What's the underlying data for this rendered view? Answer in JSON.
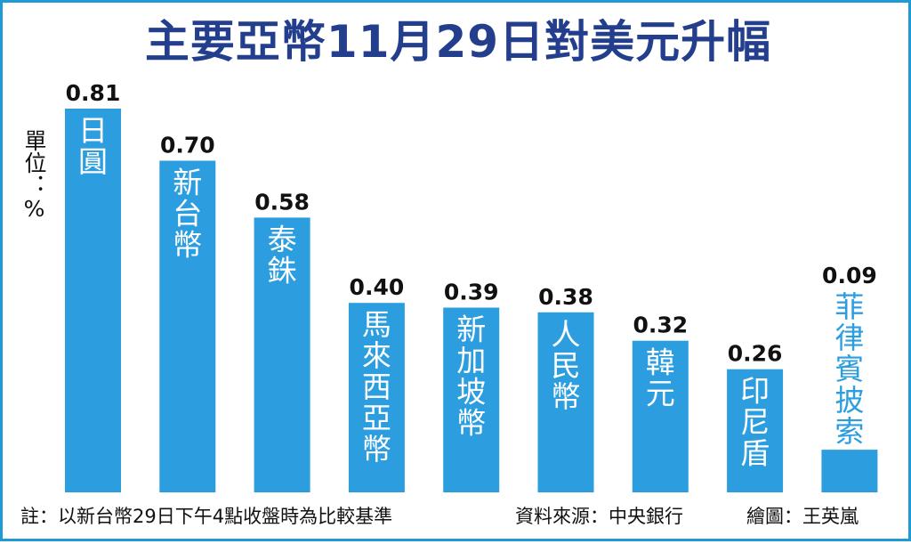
{
  "title": "主要亞幣11月29日對美元升幅",
  "unit_label": "單位：%",
  "footer": {
    "note": "註：以新台幣29日下午4點收盤時為比較基準",
    "source": "資料來源：中央銀行",
    "credit": "繪圖：王英嵐"
  },
  "colors": {
    "bar": "#2c9ee0",
    "title": "#233e8c",
    "border": "#1f9ad6",
    "label_inside": "#ffffff",
    "label_outside": "#2c9ee0",
    "value_text": "#111111"
  },
  "chart_data": {
    "type": "bar",
    "title": "主要亞幣11月29日對美元升幅",
    "ylabel": "單位：%",
    "categories": [
      "日圓",
      "新台幣",
      "泰銖",
      "馬來西亞幣",
      "新加坡幣",
      "人民幣",
      "韓元",
      "印尼盾",
      "菲律賓披索"
    ],
    "values": [
      0.81,
      0.7,
      0.58,
      0.4,
      0.39,
      0.38,
      0.32,
      0.26,
      0.09
    ],
    "value_labels": [
      "0.81",
      "0.70",
      "0.58",
      "0.40",
      "0.39",
      "0.38",
      "0.32",
      "0.26",
      "0.09"
    ],
    "ylim": [
      0,
      0.81
    ],
    "grid": false,
    "legend": "none"
  }
}
